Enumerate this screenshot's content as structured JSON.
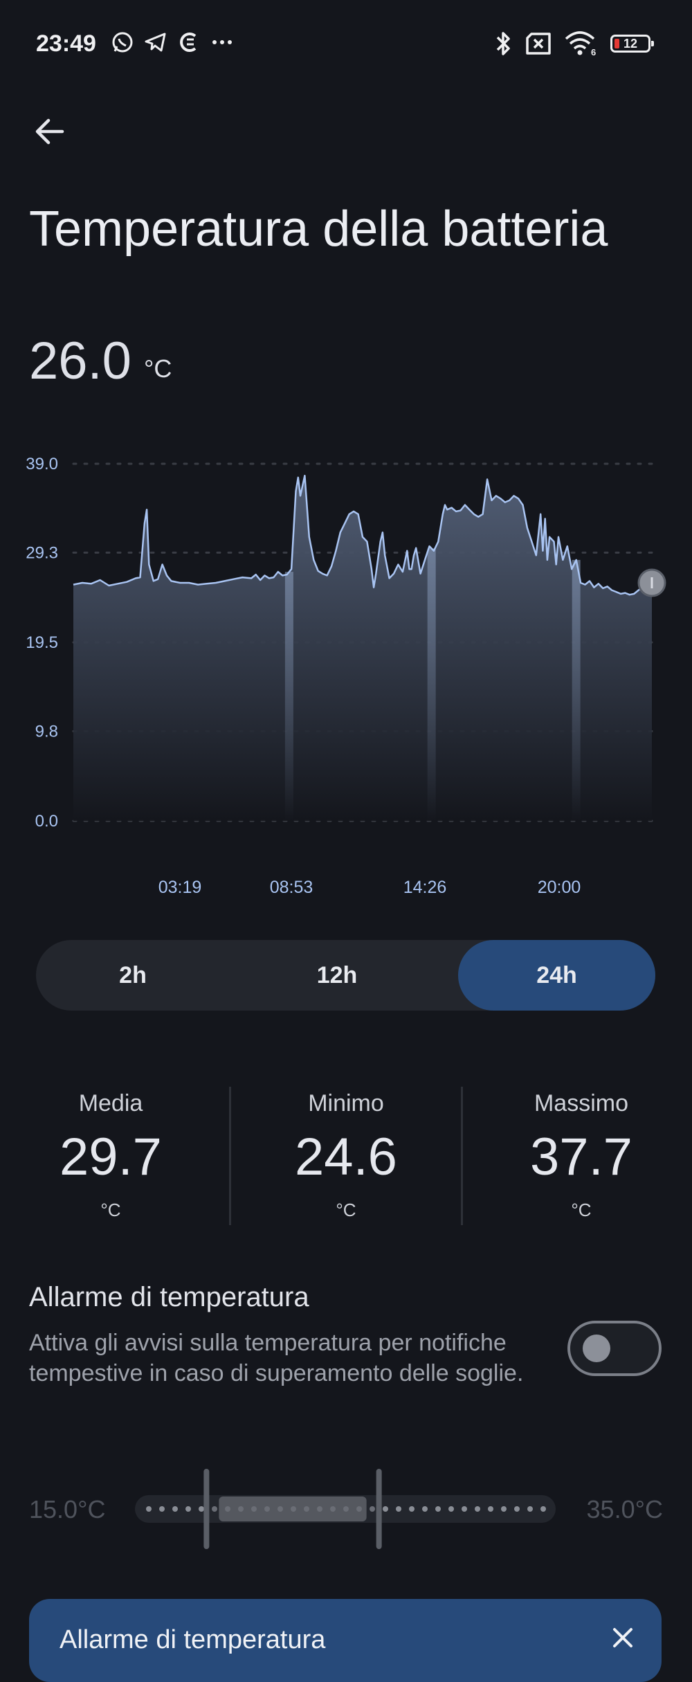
{
  "status_bar": {
    "time": "23:49",
    "app_icons": [
      "whatsapp-icon",
      "telegram-icon",
      "app-icon",
      "more-dots-icon"
    ],
    "system_icons": [
      "bluetooth-icon",
      "no-sim-icon",
      "wifi-6-icon",
      "battery-icon"
    ],
    "battery_level": "12",
    "wifi_label": "6"
  },
  "header": {
    "back_icon": "arrow-back-icon",
    "title": "Temperatura della batteria"
  },
  "current": {
    "value": "26.0",
    "unit": "°C"
  },
  "chart_data": {
    "type": "area",
    "y_ticks": [
      "39.0",
      "29.3",
      "19.5",
      "9.8",
      "0.0"
    ],
    "ylim": [
      0.0,
      39.0
    ],
    "x_ticks": [
      "03:19",
      "08:53",
      "14:26",
      "20:00"
    ],
    "grid": "horizontal dotted",
    "line_color": "#a9c4f2",
    "fill_color": "#4c5a72",
    "points": [
      [
        0,
        25.8
      ],
      [
        2,
        26.0
      ],
      [
        4,
        25.9
      ],
      [
        6,
        26.3
      ],
      [
        8,
        25.7
      ],
      [
        10,
        25.9
      ],
      [
        12,
        26.1
      ],
      [
        14,
        26.5
      ],
      [
        15,
        26.6
      ],
      [
        16,
        32.5
      ],
      [
        16.5,
        34.0
      ],
      [
        17,
        28.0
      ],
      [
        18,
        26.2
      ],
      [
        19,
        26.4
      ],
      [
        20,
        28.0
      ],
      [
        21,
        26.8
      ],
      [
        22,
        26.2
      ],
      [
        24,
        26.0
      ],
      [
        26,
        26.0
      ],
      [
        28,
        25.8
      ],
      [
        30,
        25.9
      ],
      [
        32,
        26.0
      ],
      [
        34,
        26.2
      ],
      [
        36,
        26.4
      ],
      [
        38,
        26.6
      ],
      [
        40,
        26.5
      ],
      [
        41,
        26.9
      ],
      [
        42,
        26.3
      ],
      [
        43,
        26.8
      ],
      [
        44,
        26.5
      ],
      [
        45,
        26.6
      ],
      [
        46,
        27.2
      ],
      [
        47,
        26.8
      ],
      [
        48,
        26.9
      ],
      [
        49,
        27.5
      ],
      [
        50,
        36.0
      ],
      [
        50.5,
        37.5
      ],
      [
        51,
        35.5
      ],
      [
        52,
        37.7
      ],
      [
        53,
        31.0
      ],
      [
        54,
        28.5
      ],
      [
        55,
        27.3
      ],
      [
        56,
        27.0
      ],
      [
        57,
        26.8
      ],
      [
        58,
        27.8
      ],
      [
        59,
        29.5
      ],
      [
        60,
        31.5
      ],
      [
        61,
        32.5
      ],
      [
        62,
        33.5
      ],
      [
        63,
        33.8
      ],
      [
        64,
        33.5
      ],
      [
        65,
        31.0
      ],
      [
        66,
        30.5
      ],
      [
        67,
        27.5
      ],
      [
        67.5,
        25.5
      ],
      [
        68,
        27.0
      ],
      [
        69,
        30.5
      ],
      [
        69.5,
        31.5
      ],
      [
        70,
        29.0
      ],
      [
        71,
        26.5
      ],
      [
        72,
        27.0
      ],
      [
        73,
        28.0
      ],
      [
        74,
        27.2
      ],
      [
        75,
        29.5
      ],
      [
        75.5,
        27.5
      ],
      [
        76,
        27.5
      ],
      [
        76.5,
        29.0
      ],
      [
        77,
        29.8
      ],
      [
        78,
        27.0
      ],
      [
        79,
        28.5
      ],
      [
        80,
        30.0
      ],
      [
        81,
        29.5
      ],
      [
        82,
        30.5
      ],
      [
        83,
        33.5
      ],
      [
        83.5,
        34.5
      ],
      [
        84,
        34.0
      ],
      [
        85,
        34.2
      ],
      [
        86,
        33.8
      ],
      [
        87,
        33.9
      ],
      [
        88,
        34.5
      ],
      [
        89,
        34.0
      ],
      [
        90,
        33.5
      ],
      [
        91,
        33.2
      ],
      [
        92,
        33.5
      ],
      [
        93,
        37.3
      ],
      [
        94,
        35.0
      ],
      [
        95,
        35.5
      ],
      [
        96,
        35.2
      ],
      [
        97,
        34.8
      ],
      [
        98,
        35.0
      ],
      [
        99,
        35.5
      ],
      [
        100,
        35.2
      ],
      [
        101,
        34.5
      ],
      [
        102,
        32.0
      ],
      [
        103,
        30.5
      ],
      [
        104,
        29.0
      ],
      [
        105,
        33.5
      ],
      [
        105.5,
        29.5
      ],
      [
        106,
        33.0
      ],
      [
        106.5,
        28.5
      ],
      [
        107,
        31.0
      ],
      [
        108,
        30.5
      ],
      [
        108.5,
        28.0
      ],
      [
        109,
        31.0
      ],
      [
        110,
        28.5
      ],
      [
        111,
        30.0
      ],
      [
        112,
        27.5
      ],
      [
        113,
        28.5
      ],
      [
        114,
        26.0
      ],
      [
        115,
        25.8
      ],
      [
        116,
        26.2
      ],
      [
        117,
        25.5
      ],
      [
        118,
        25.9
      ],
      [
        119,
        25.4
      ],
      [
        120,
        25.6
      ],
      [
        121,
        25.2
      ],
      [
        122,
        25.0
      ],
      [
        123,
        24.8
      ],
      [
        124,
        24.9
      ],
      [
        125,
        24.7
      ],
      [
        126,
        24.8
      ],
      [
        127,
        25.2
      ],
      [
        128,
        25.5
      ],
      [
        129,
        25.2
      ],
      [
        130,
        26.0
      ]
    ],
    "highlight_bands_x": [
      48.5,
      80.5,
      113.0
    ]
  },
  "range_tabs": {
    "items": [
      "2h",
      "12h",
      "24h"
    ],
    "selected": "24h"
  },
  "stats": {
    "media": {
      "label": "Media",
      "value": "29.7",
      "unit": "°C"
    },
    "minimo": {
      "label": "Minimo",
      "value": "24.6",
      "unit": "°C"
    },
    "massimo": {
      "label": "Massimo",
      "value": "37.7",
      "unit": "°C"
    }
  },
  "alarm": {
    "title": "Allarme di temperatura",
    "description": "Attiva gli avvisi sulla temperatura per notifiche tempestive in caso di superamento delle soglie.",
    "toggle_on": false,
    "range_min": "15.0°C",
    "range_max": "35.0°C",
    "range_low_fraction": 0.17,
    "range_high_fraction": 0.58
  },
  "banner": {
    "title": "Allarme di temperatura",
    "close_icon": "close-icon"
  },
  "colors": {
    "background": "#14161c",
    "accent": "#274a7a",
    "chart_line": "#a9c4f2"
  }
}
